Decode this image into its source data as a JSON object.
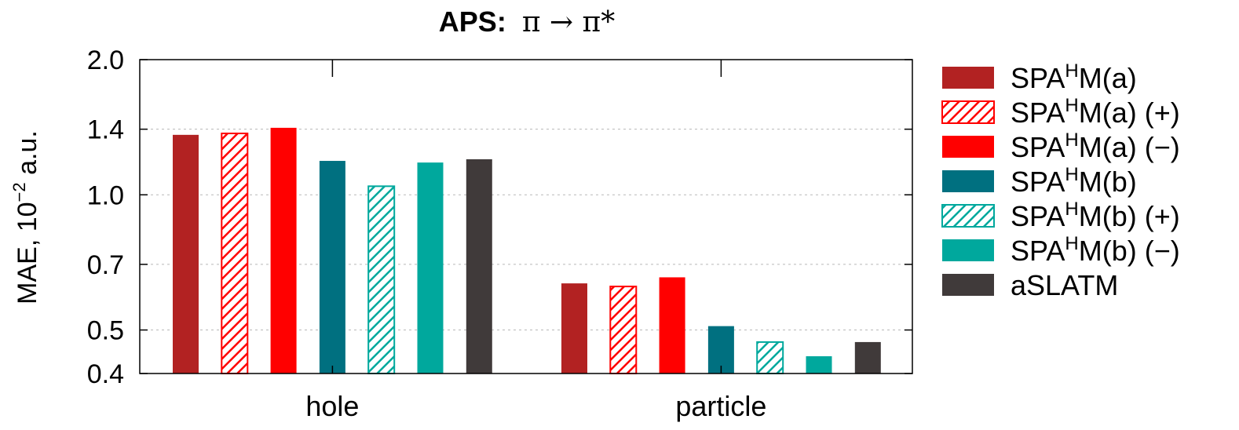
{
  "chart_data": {
    "type": "bar",
    "title_bold": "APS:",
    "title_math": "π → π*",
    "ylabel": "MAE, 10",
    "ylabel_exp": "−2",
    "ylabel_unit": " a.u.",
    "xlabel": "",
    "yscale": "log",
    "ylim": [
      0.4,
      2.0
    ],
    "yticks": [
      0.4,
      0.5,
      0.7,
      1.0,
      1.4,
      2.0
    ],
    "ytick_labels": [
      "0.4",
      "0.5",
      "0.7",
      "1.0",
      "1.4",
      "2.0"
    ],
    "grid": true,
    "legend_position": "right",
    "categories": [
      "hole",
      "particle"
    ],
    "series": [
      {
        "name": "SPAHM(a)",
        "base": "SPA",
        "sup": "H",
        "rest": "M(a)",
        "color": "#b22222",
        "hatch": false,
        "values": [
          1.36,
          0.635
        ]
      },
      {
        "name": "SPAHM(a) (+)",
        "base": "SPA",
        "sup": "H",
        "rest": "M(a) (+)",
        "color": "#ff0000",
        "hatch": true,
        "values": [
          1.37,
          0.625
        ]
      },
      {
        "name": "SPAHM(a) (−)",
        "base": "SPA",
        "sup": "H",
        "rest": "M(a) (−)",
        "color": "#ff0000",
        "hatch": false,
        "values": [
          1.41,
          0.655
        ]
      },
      {
        "name": "SPAHM(b)",
        "base": "SPA",
        "sup": "H",
        "rest": "M(b)",
        "color": "#007080",
        "hatch": false,
        "values": [
          1.19,
          0.51
        ]
      },
      {
        "name": "SPAHM(b) (+)",
        "base": "SPA",
        "sup": "H",
        "rest": "M(b) (+)",
        "color": "#00a89d",
        "hatch": true,
        "values": [
          1.045,
          0.47
        ]
      },
      {
        "name": "SPAHM(b) (−)",
        "base": "SPA",
        "sup": "H",
        "rest": "M(b) (−)",
        "color": "#00a89d",
        "hatch": false,
        "values": [
          1.18,
          0.437
        ]
      },
      {
        "name": "aSLATM",
        "base": "aSLATM",
        "sup": "",
        "rest": "",
        "color": "#403a3a",
        "hatch": false,
        "values": [
          1.2,
          0.47
        ]
      }
    ]
  }
}
